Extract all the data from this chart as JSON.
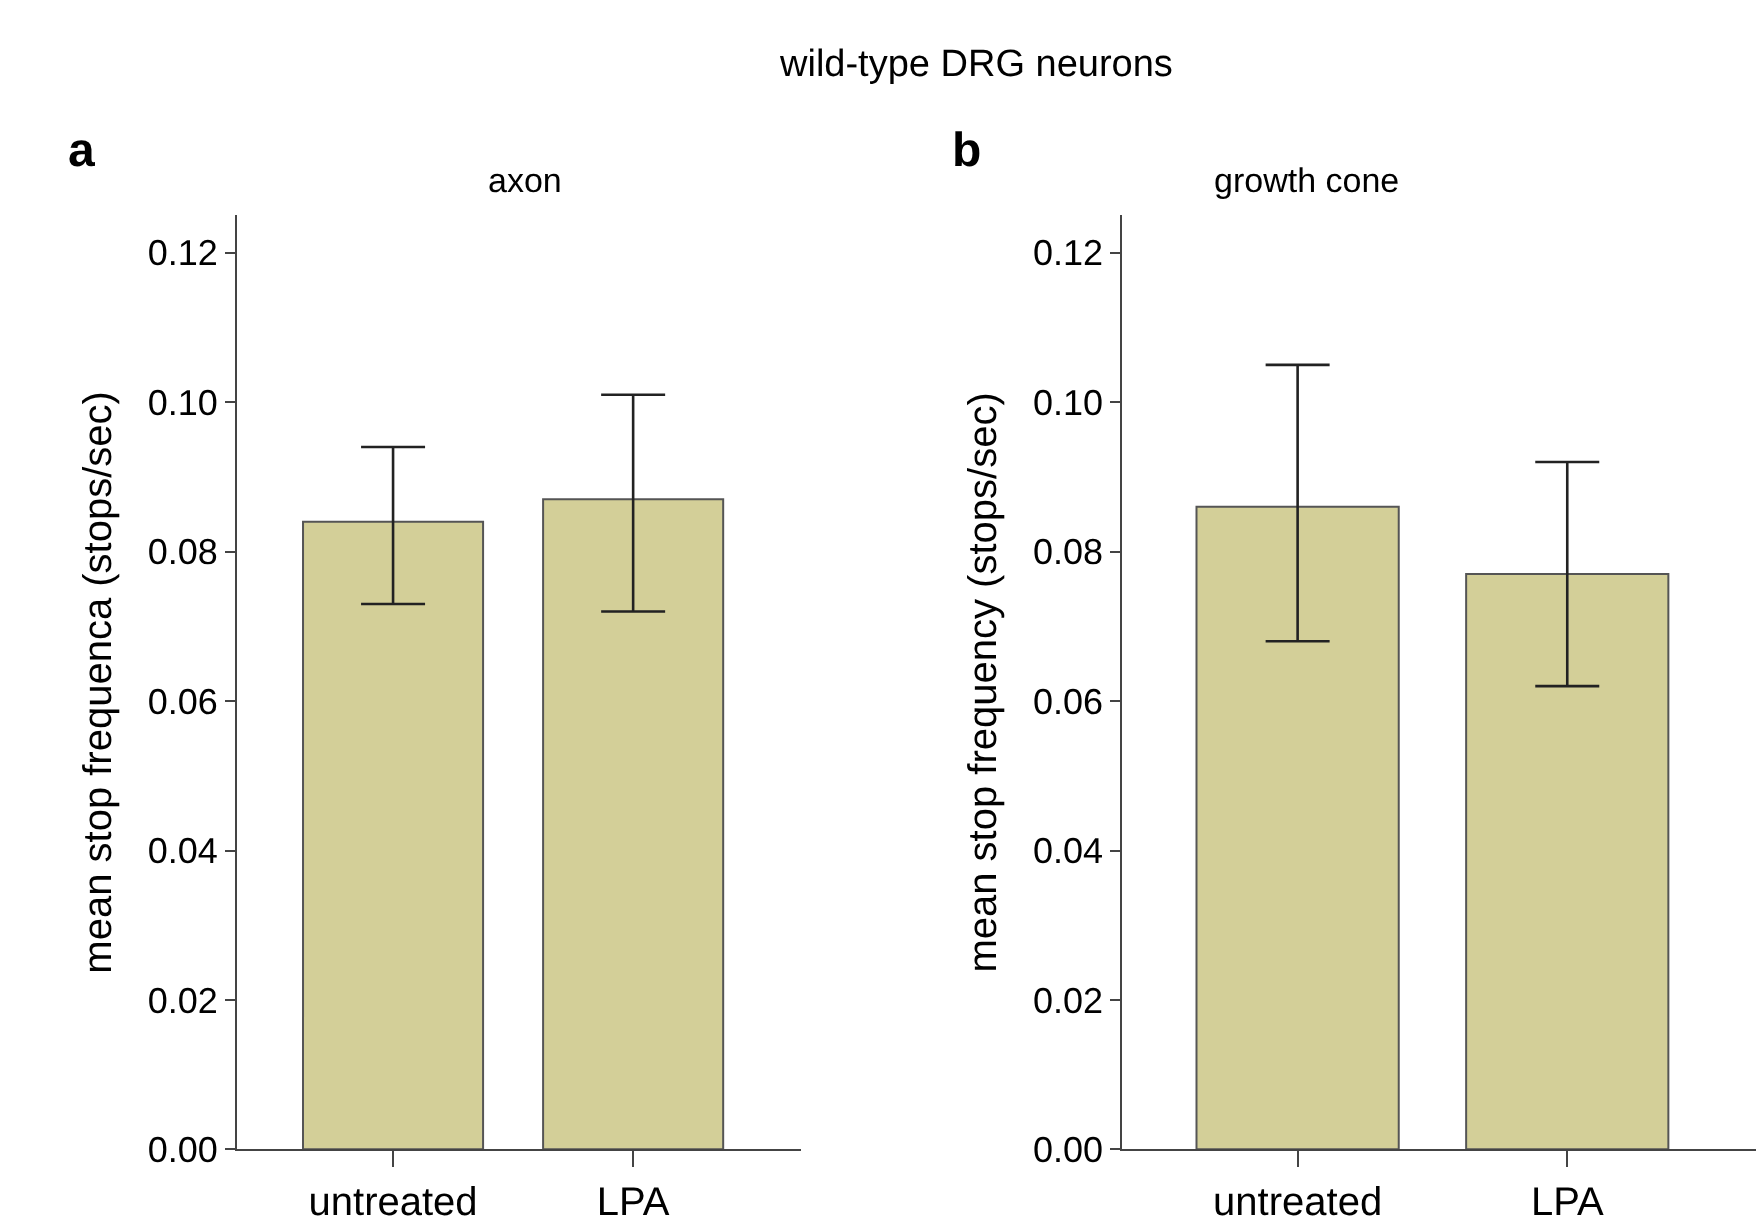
{
  "chart_data": [
    {
      "type": "bar",
      "title": "axon",
      "ylabel": "mean stop frequenca (stops/sec)",
      "categories": [
        "untreated",
        "LPA"
      ],
      "values": [
        0.084,
        0.087
      ],
      "errors": [
        [
          0.073,
          0.094
        ],
        [
          0.072,
          0.101
        ]
      ],
      "color": "#d3cf98",
      "ylim": [
        0,
        0.125
      ],
      "yticks": [
        {
          "value": 0,
          "label": "0.00"
        },
        {
          "value": 0.02,
          "label": "0.02"
        },
        {
          "value": 0.04,
          "label": "0.04"
        },
        {
          "value": 0.06,
          "label": "0.06"
        },
        {
          "value": 0.08,
          "label": "0.08"
        },
        {
          "value": 0.1,
          "label": "0.10"
        },
        {
          "value": 0.12,
          "label": "0.12"
        }
      ],
      "annotations": [
        "wild-type DRG neurons",
        "a"
      ]
    },
    {
      "type": "bar",
      "title": "growth cone",
      "ylabel": "mean stop frequency (stops/sec)",
      "categories": [
        "untreated",
        "LPA"
      ],
      "values": [
        0.086,
        0.077
      ],
      "errors": [
        [
          0.068,
          0.105
        ],
        [
          0.062,
          0.092
        ]
      ],
      "color": "#d3cf98",
      "ylim": [
        0,
        0.125
      ],
      "yticks": [
        {
          "value": 0,
          "label": "0.00"
        },
        {
          "value": 0.02,
          "label": "0.02"
        },
        {
          "value": 0.04,
          "label": "0.04"
        },
        {
          "value": 0.06,
          "label": "0.06"
        },
        {
          "value": 0.08,
          "label": "0.08"
        },
        {
          "value": 0.1,
          "label": "0.10"
        },
        {
          "value": 0.12,
          "label": "0.12"
        }
      ],
      "annotations": [
        "b"
      ]
    }
  ]
}
